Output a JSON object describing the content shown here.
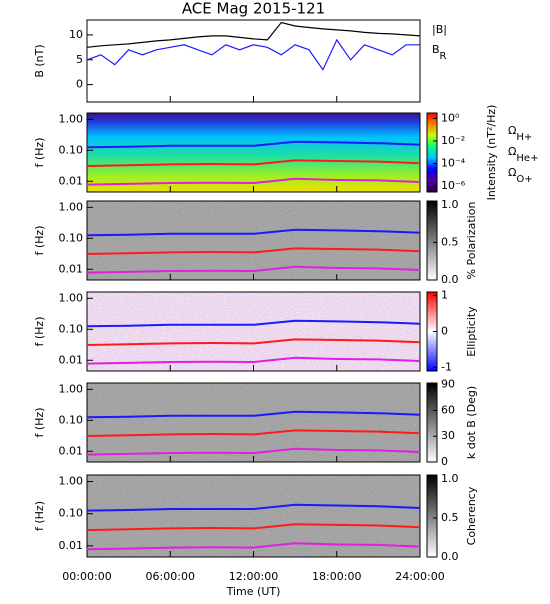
{
  "chart_data": [
    {
      "type": "line",
      "title": "ACE Mag 2015-121",
      "ylabel": "B (nT)",
      "xlim": [
        0,
        24
      ],
      "xticks": [
        0,
        6,
        12,
        18,
        24
      ],
      "ylim": [
        -3.5,
        13
      ],
      "yticks": [
        0,
        5,
        10
      ],
      "x": [
        0,
        1,
        2,
        3,
        4,
        5,
        6,
        7,
        8,
        9,
        10,
        11,
        12,
        13,
        14,
        15,
        16,
        17,
        18,
        19,
        20,
        21,
        22,
        23,
        24
      ],
      "series": [
        {
          "name": "|B|",
          "color": "#000000",
          "values": [
            7.5,
            7.8,
            8,
            8.2,
            8.5,
            8.8,
            9,
            9.3,
            9.6,
            9.8,
            9.8,
            9.5,
            9.2,
            9,
            12.5,
            11.8,
            11.5,
            11.2,
            11,
            10.8,
            10.5,
            10.3,
            10.2,
            10,
            9.8
          ]
        },
        {
          "name": "BR",
          "color": "#1a1aff",
          "values": [
            5,
            6,
            4,
            7,
            6,
            7,
            7.5,
            8,
            7,
            6,
            8,
            7,
            8,
            7.5,
            6,
            8,
            7,
            3,
            9,
            5,
            8,
            7,
            6,
            8,
            8
          ]
        }
      ]
    },
    {
      "type": "spectrogram",
      "ylabel": "f (Hz)",
      "log": true,
      "xlim": [
        0,
        24
      ],
      "xticks": [
        0,
        6,
        12,
        18,
        24
      ],
      "ylim": [
        0.0045,
        1.6
      ],
      "yticks": [
        {
          "value": 0.01,
          "label": "0.01"
        },
        {
          "value": 0.1,
          "label": "0.10"
        },
        {
          "value": 1,
          "label": "1.00"
        }
      ],
      "x": [
        0,
        3,
        6,
        9,
        12,
        15,
        18,
        21,
        24
      ],
      "series": [
        {
          "name": "ΩH+",
          "color": "#1a1aff",
          "values": [
            0.125,
            0.13,
            0.14,
            0.14,
            0.14,
            0.19,
            0.18,
            0.17,
            0.15
          ]
        },
        {
          "name": "ΩHe+",
          "color": "#ff1a1a",
          "values": [
            0.031,
            0.033,
            0.035,
            0.036,
            0.035,
            0.047,
            0.045,
            0.043,
            0.038
          ]
        },
        {
          "name": "ΩO+",
          "color": "#e020e0",
          "values": [
            0.0078,
            0.0082,
            0.0088,
            0.009,
            0.0088,
            0.012,
            0.011,
            0.0107,
            0.0095
          ]
        }
      ],
      "colorbar": {
        "label": "Intensity (nT²/Hz)",
        "log": true,
        "clim": [
          3e-07,
          3
        ],
        "colors": [
          "#200040",
          "#5a00a0",
          "#0000ff",
          "#00c0ff",
          "#00ff80",
          "#c0ff00",
          "#ff8000",
          "#ff0000"
        ],
        "ticks": [
          {
            "value": 1,
            "label": "10⁰"
          },
          {
            "value": 0.01,
            "label": "10⁻²"
          },
          {
            "value": 0.0001,
            "label": "10⁻⁴"
          },
          {
            "value": 1e-06,
            "label": "10⁻⁶"
          }
        ]
      }
    },
    {
      "type": "spectrogram",
      "ylabel": "f (Hz)",
      "log": true,
      "xlim": [
        0,
        24
      ],
      "xticks": [
        0,
        6,
        12,
        18,
        24
      ],
      "ylim": [
        0.0045,
        1.6
      ],
      "yticks": [
        {
          "value": 0.01,
          "label": "0.01"
        },
        {
          "value": 0.1,
          "label": "0.10"
        },
        {
          "value": 1,
          "label": "1.00"
        }
      ],
      "x": [
        0,
        3,
        6,
        9,
        12,
        15,
        18,
        21,
        24
      ],
      "series": [
        {
          "color": "#1a1aff",
          "values": [
            0.125,
            0.13,
            0.14,
            0.14,
            0.14,
            0.19,
            0.18,
            0.17,
            0.15
          ]
        },
        {
          "color": "#ff1a1a",
          "values": [
            0.031,
            0.033,
            0.035,
            0.036,
            0.035,
            0.047,
            0.045,
            0.043,
            0.038
          ]
        },
        {
          "color": "#e020e0",
          "values": [
            0.0078,
            0.0082,
            0.0088,
            0.009,
            0.0088,
            0.012,
            0.011,
            0.0107,
            0.0095
          ]
        }
      ],
      "colorbar": {
        "label": "% Polarization",
        "clim": [
          0,
          1.05
        ],
        "colors": [
          "#ffffff",
          "#000000"
        ],
        "ticks": [
          {
            "value": 0,
            "label": "0.0"
          },
          {
            "value": 0.5,
            "label": "0.5"
          },
          {
            "value": 1,
            "label": "1.0"
          }
        ]
      }
    },
    {
      "type": "spectrogram",
      "ylabel": "f (Hz)",
      "log": true,
      "xlim": [
        0,
        24
      ],
      "xticks": [
        0,
        6,
        12,
        18,
        24
      ],
      "ylim": [
        0.0045,
        1.6
      ],
      "yticks": [
        {
          "value": 0.01,
          "label": "0.01"
        },
        {
          "value": 0.1,
          "label": "0.10"
        },
        {
          "value": 1,
          "label": "1.00"
        }
      ],
      "x": [
        0,
        3,
        6,
        9,
        12,
        15,
        18,
        21,
        24
      ],
      "series": [
        {
          "color": "#1a1aff",
          "values": [
            0.125,
            0.13,
            0.14,
            0.14,
            0.14,
            0.19,
            0.18,
            0.17,
            0.15
          ]
        },
        {
          "color": "#ff1a1a",
          "values": [
            0.031,
            0.033,
            0.035,
            0.036,
            0.035,
            0.047,
            0.045,
            0.043,
            0.038
          ]
        },
        {
          "color": "#e020e0",
          "values": [
            0.0078,
            0.0082,
            0.0088,
            0.009,
            0.0088,
            0.012,
            0.011,
            0.0107,
            0.0095
          ]
        }
      ],
      "colorbar": {
        "label": "Ellipticity",
        "clim": [
          -1.1,
          1.1
        ],
        "colors": [
          "#0000ff",
          "#ffffff",
          "#ff0000"
        ],
        "ticks": [
          -1,
          0,
          1
        ]
      }
    },
    {
      "type": "spectrogram",
      "ylabel": "f (Hz)",
      "log": true,
      "xlim": [
        0,
        24
      ],
      "xticks": [
        0,
        6,
        12,
        18,
        24
      ],
      "ylim": [
        0.0045,
        1.6
      ],
      "yticks": [
        {
          "value": 0.01,
          "label": "0.01"
        },
        {
          "value": 0.1,
          "label": "0.10"
        },
        {
          "value": 1,
          "label": "1.00"
        }
      ],
      "x": [
        0,
        3,
        6,
        9,
        12,
        15,
        18,
        21,
        24
      ],
      "series": [
        {
          "color": "#1a1aff",
          "values": [
            0.125,
            0.13,
            0.14,
            0.14,
            0.14,
            0.19,
            0.18,
            0.17,
            0.15
          ]
        },
        {
          "color": "#ff1a1a",
          "values": [
            0.031,
            0.033,
            0.035,
            0.036,
            0.035,
            0.047,
            0.045,
            0.043,
            0.038
          ]
        },
        {
          "color": "#e020e0",
          "values": [
            0.0078,
            0.0082,
            0.0088,
            0.009,
            0.0088,
            0.012,
            0.011,
            0.0107,
            0.0095
          ]
        }
      ],
      "colorbar": {
        "label": "k dot B (Deg)",
        "clim": [
          0,
          92
        ],
        "colors": [
          "#ffffff",
          "#000000"
        ],
        "ticks": [
          0,
          30,
          60,
          90
        ]
      }
    },
    {
      "type": "spectrogram",
      "ylabel": "f (Hz)",
      "log": true,
      "xlim": [
        0,
        24
      ],
      "ylim": [
        0.0045,
        1.6
      ],
      "xlabel": "Time (UT)",
      "xticks": [
        {
          "value": 0,
          "label": "00:00:00"
        },
        {
          "value": 6,
          "label": "06:00:00"
        },
        {
          "value": 12,
          "label": "12:00:00"
        },
        {
          "value": 18,
          "label": "18:00:00"
        },
        {
          "value": 24,
          "label": "24:00:00"
        }
      ],
      "yticks": [
        {
          "value": 0.01,
          "label": "0.01"
        },
        {
          "value": 0.1,
          "label": "0.10"
        },
        {
          "value": 1,
          "label": "1.00"
        }
      ],
      "x": [
        0,
        3,
        6,
        9,
        12,
        15,
        18,
        21,
        24
      ],
      "series": [
        {
          "color": "#1a1aff",
          "values": [
            0.125,
            0.13,
            0.14,
            0.14,
            0.14,
            0.19,
            0.18,
            0.17,
            0.15
          ]
        },
        {
          "color": "#ff1a1a",
          "values": [
            0.031,
            0.033,
            0.035,
            0.036,
            0.035,
            0.047,
            0.045,
            0.043,
            0.038
          ]
        },
        {
          "color": "#e020e0",
          "values": [
            0.0078,
            0.0082,
            0.0088,
            0.009,
            0.0088,
            0.012,
            0.011,
            0.0107,
            0.0095
          ]
        }
      ],
      "colorbar": {
        "label": "Coherency",
        "clim": [
          0,
          1.05
        ],
        "colors": [
          "#ffffff",
          "#000000"
        ],
        "ticks": [
          {
            "value": 0,
            "label": "0.0"
          },
          {
            "value": 0.5,
            "label": "0.5"
          },
          {
            "value": 1,
            "label": "1.0"
          }
        ]
      }
    }
  ]
}
